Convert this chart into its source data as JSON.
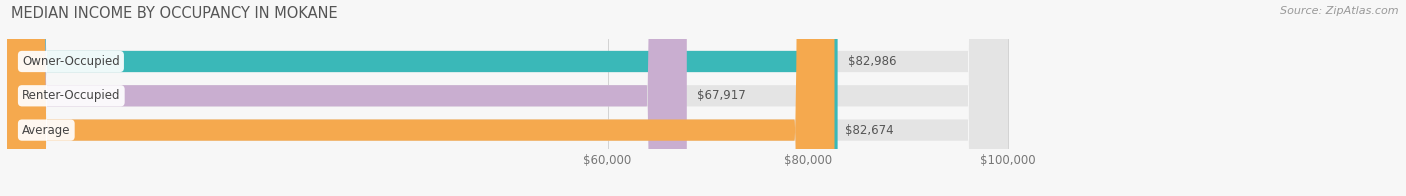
{
  "title": "MEDIAN INCOME BY OCCUPANCY IN MOKANE",
  "source": "Source: ZipAtlas.com",
  "categories": [
    "Owner-Occupied",
    "Renter-Occupied",
    "Average"
  ],
  "values": [
    82986,
    67917,
    82674
  ],
  "labels": [
    "$82,986",
    "$67,917",
    "$82,674"
  ],
  "bar_colors": [
    "#3ab8b8",
    "#c9aed0",
    "#f5a94e"
  ],
  "bar_bg_color": "#e4e4e4",
  "background_color": "#f7f7f7",
  "xmin": 0,
  "xmax": 100000,
  "xlim_display_max": 118000,
  "tick_values": [
    60000,
    80000,
    100000
  ],
  "tick_labels": [
    "$60,000",
    "$80,000",
    "$100,000"
  ],
  "title_fontsize": 10.5,
  "label_fontsize": 8.5,
  "bar_label_fontsize": 8.5,
  "source_fontsize": 8.0
}
